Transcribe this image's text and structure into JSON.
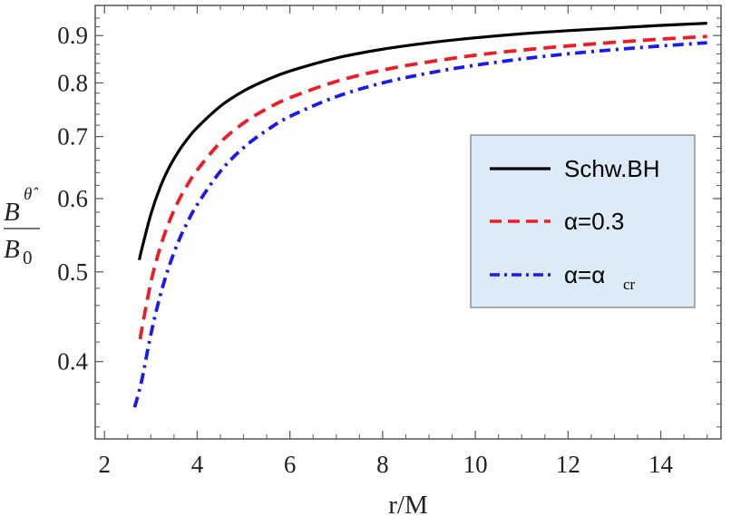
{
  "chart_data": {
    "type": "line",
    "xlabel": "r/M",
    "ylabel": {
      "numerator": "B",
      "numerator_sup": "θ̂",
      "denominator": "B",
      "denominator_sub": "0"
    },
    "xlim": [
      1.8,
      15.3
    ],
    "ylim": [
      0.33,
      0.97
    ],
    "y_scale": "log",
    "grid": false,
    "legend_position": "right-middle",
    "legend_background": "#dcebf7",
    "x_ticks": [
      2,
      4,
      6,
      8,
      10,
      12,
      14
    ],
    "x_tick_labels": [
      "2",
      "4",
      "6",
      "8",
      "10",
      "12",
      "14"
    ],
    "y_ticks": [
      0.4,
      0.5,
      0.6,
      0.7,
      0.8,
      0.9
    ],
    "y_tick_labels": [
      "0.4",
      "0.5",
      "0.6",
      "0.7",
      "0.8",
      "0.9"
    ],
    "x": [
      2.7,
      2.8,
      3,
      3.2,
      3.4,
      3.6,
      3.8,
      4,
      4.5,
      5,
      5.5,
      6,
      7,
      8,
      9,
      10,
      11,
      12,
      13,
      14,
      15
    ],
    "series": [
      {
        "name": "Schw.BH",
        "color": "#000000",
        "style": "solid",
        "x": [
          2.75,
          2.8,
          3,
          3.2,
          3.4,
          3.6,
          3.8,
          4,
          4.5,
          5,
          5.5,
          6,
          7,
          8,
          9,
          10,
          11,
          12,
          13,
          14,
          15
        ],
        "values": [
          0.515,
          0.528,
          0.577,
          0.617,
          0.649,
          0.675,
          0.697,
          0.716,
          0.755,
          0.784,
          0.806,
          0.824,
          0.851,
          0.87,
          0.884,
          0.895,
          0.904,
          0.911,
          0.917,
          0.923,
          0.928
        ]
      },
      {
        "name": "α=0.3",
        "color": "#ee1c24",
        "style": "dashed",
        "x": [
          2.77,
          2.8,
          3,
          3.2,
          3.4,
          3.6,
          3.8,
          4,
          4.5,
          5,
          5.5,
          6,
          7,
          8,
          9,
          10,
          11,
          12,
          13,
          14,
          15
        ],
        "values": [
          0.423,
          0.432,
          0.487,
          0.531,
          0.567,
          0.597,
          0.622,
          0.644,
          0.69,
          0.724,
          0.75,
          0.771,
          0.803,
          0.826,
          0.843,
          0.857,
          0.868,
          0.877,
          0.885,
          0.892,
          0.898
        ]
      },
      {
        "name": "α=α",
        "name_sub": "cr",
        "color": "#1a1aee",
        "style": "dashdot",
        "x": [
          2.65,
          2.8,
          3,
          3.2,
          3.4,
          3.6,
          3.8,
          4,
          4.5,
          5,
          5.5,
          6,
          7,
          8,
          9,
          10,
          11,
          12,
          13,
          14,
          15
        ],
        "values": [
          0.357,
          0.381,
          0.428,
          0.471,
          0.508,
          0.54,
          0.567,
          0.591,
          0.642,
          0.681,
          0.711,
          0.736,
          0.773,
          0.8,
          0.82,
          0.836,
          0.849,
          0.86,
          0.869,
          0.877,
          0.884
        ]
      }
    ]
  }
}
